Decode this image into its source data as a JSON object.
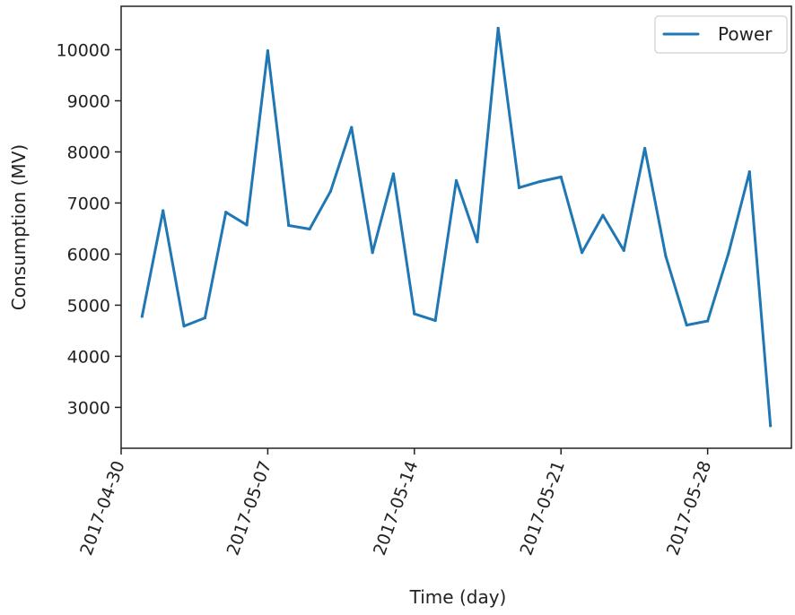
{
  "chart_data": {
    "type": "line",
    "title": "",
    "xlabel": "Time (day)",
    "ylabel": "Consumption (MV)",
    "x_type": "date",
    "xlim": [
      "2017-04-30",
      "2017-06-01"
    ],
    "ylim": [
      2200,
      10850
    ],
    "grid": false,
    "legend_position": "top-right",
    "xticks": [
      {
        "value": "2017-04-30",
        "label": "2017-04-30"
      },
      {
        "value": "2017-05-07",
        "label": "2017-05-07"
      },
      {
        "value": "2017-05-14",
        "label": "2017-05-14"
      },
      {
        "value": "2017-05-21",
        "label": "2017-05-21"
      },
      {
        "value": "2017-05-28",
        "label": "2017-05-28"
      }
    ],
    "yticks": [
      {
        "value": 3000,
        "label": "3000"
      },
      {
        "value": 4000,
        "label": "4000"
      },
      {
        "value": 5000,
        "label": "5000"
      },
      {
        "value": 6000,
        "label": "6000"
      },
      {
        "value": 7000,
        "label": "7000"
      },
      {
        "value": 8000,
        "label": "8000"
      },
      {
        "value": 9000,
        "label": "9000"
      },
      {
        "value": 10000,
        "label": "10000"
      }
    ],
    "x": [
      "2017-05-01",
      "2017-05-02",
      "2017-05-03",
      "2017-05-04",
      "2017-05-05",
      "2017-05-06",
      "2017-05-07",
      "2017-05-08",
      "2017-05-09",
      "2017-05-10",
      "2017-05-11",
      "2017-05-12",
      "2017-05-13",
      "2017-05-14",
      "2017-05-15",
      "2017-05-16",
      "2017-05-17",
      "2017-05-18",
      "2017-05-19",
      "2017-05-20",
      "2017-05-21",
      "2017-05-22",
      "2017-05-23",
      "2017-05-24",
      "2017-05-25",
      "2017-05-26",
      "2017-05-27",
      "2017-05-28",
      "2017-05-29",
      "2017-05-30",
      "2017-05-31"
    ],
    "series": [
      {
        "name": "Power",
        "color": "#1f77b4",
        "values": [
          4780,
          6850,
          4590,
          4750,
          6820,
          6570,
          9980,
          6560,
          6490,
          7230,
          8480,
          6030,
          7570,
          4830,
          4700,
          7440,
          6240,
          10420,
          7300,
          7420,
          7510,
          6030,
          6760,
          6070,
          8070,
          5960,
          4610,
          4690,
          6020,
          7610,
          2640
        ]
      }
    ]
  }
}
